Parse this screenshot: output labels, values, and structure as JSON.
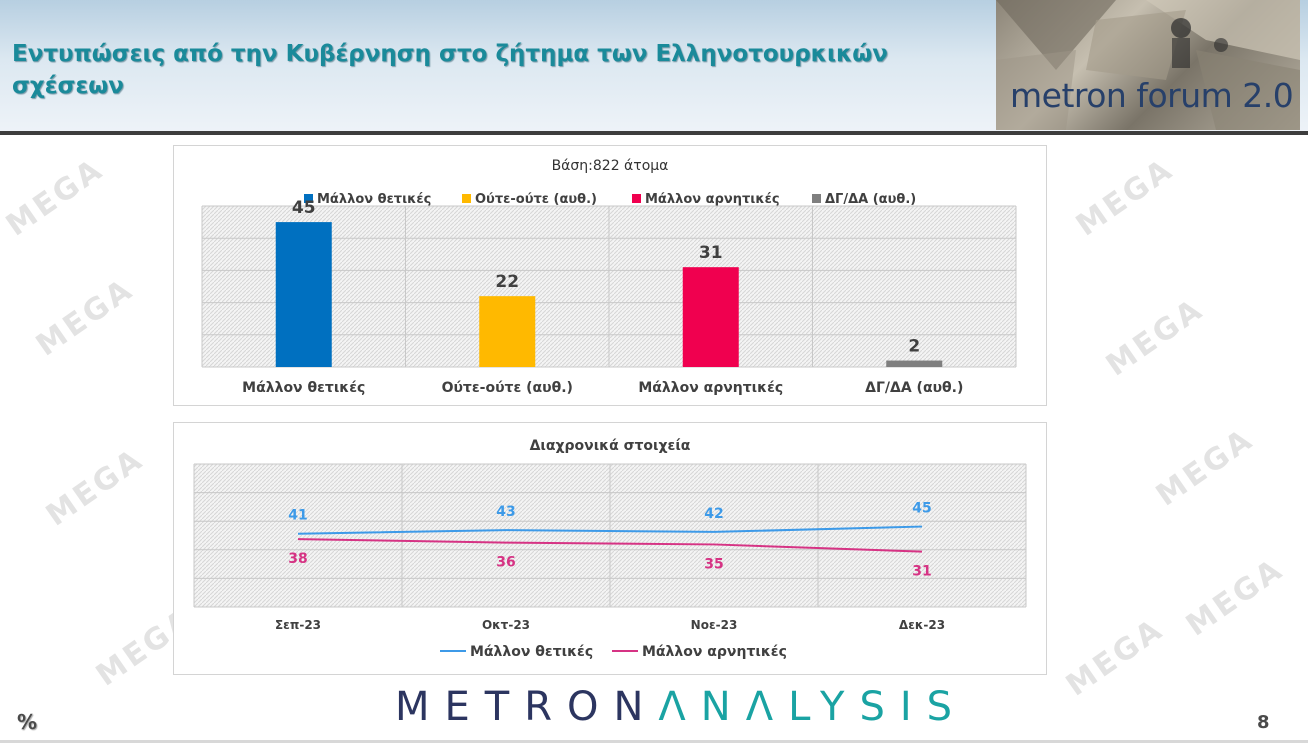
{
  "header": {
    "title": "Εντυπώσεις από την Κυβέρνηση στο ζήτημα των Ελληνοτουρκικών σχέσεων",
    "logo_text": "metron forum 2.0"
  },
  "watermark": "MEGA",
  "footer": {
    "brand_left": "METRON",
    "brand_right": "ANALYSIS",
    "percent_sign": "%",
    "page_number": "8"
  },
  "colors": {
    "title": "#1a8a9a",
    "brand_dark": "#2c3560",
    "brand_teal": "#1aa3a3"
  },
  "chart_data": [
    {
      "type": "bar",
      "title": "Βάση:822 άτομα",
      "categories": [
        "Μάλλον θετικές",
        "Ούτε-ούτε (αυθ.)",
        "Μάλλον αρνητικές",
        "ΔΓ/ΔΑ (αυθ.)"
      ],
      "values": [
        45,
        22,
        31,
        2
      ],
      "colors": [
        "#0070c0",
        "#ffb900",
        "#f0004f",
        "#7f7f7f"
      ],
      "legend": [
        "Μάλλον θετικές",
        "Ούτε-ούτε (αυθ.)",
        "Μάλλον αρνητικές",
        "ΔΓ/ΔΑ (αυθ.)"
      ],
      "legend_position": "top",
      "ylim": [
        0,
        50
      ],
      "grid": true,
      "data_labels": true
    },
    {
      "type": "line",
      "title": "Διαχρονικά στοιχεία",
      "x": [
        "Σεπ-23",
        "Οκτ-23",
        "Νοε-23",
        "Δεκ-23"
      ],
      "series": [
        {
          "name": "Μάλλον θετικές",
          "values": [
            41,
            43,
            42,
            45
          ],
          "color": "#3d9ae8"
        },
        {
          "name": "Μάλλον αρνητικές",
          "values": [
            38,
            36,
            35,
            31
          ],
          "color": "#d63384"
        }
      ],
      "legend_position": "bottom",
      "grid": true,
      "data_labels": true
    }
  ]
}
